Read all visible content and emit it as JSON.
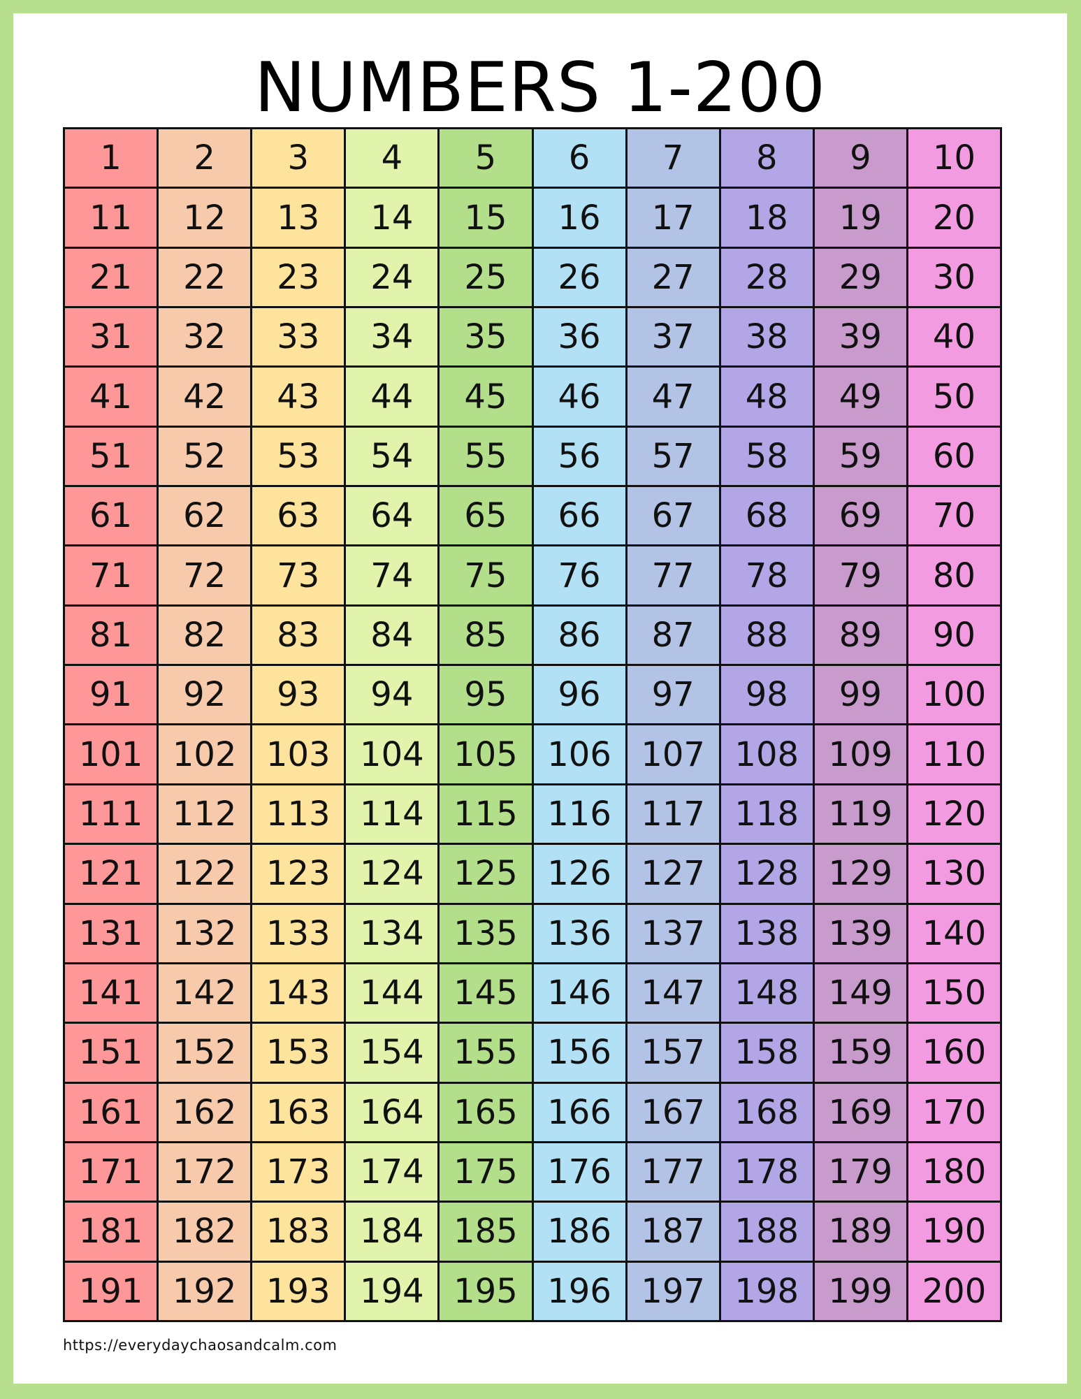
{
  "title": "NUMBERS 1-200",
  "footer_url": "https://everydaychaosandcalm.com",
  "colors": {
    "border": "#b8df8d",
    "columns": [
      "#fe9797",
      "#f6caab",
      "#fde39c",
      "#e2f3ab",
      "#b3de8a",
      "#b2e0f5",
      "#b2c3e6",
      "#b3a6e6",
      "#c99bcc",
      "#f29be1"
    ]
  },
  "numbers": [
    1,
    2,
    3,
    4,
    5,
    6,
    7,
    8,
    9,
    10,
    11,
    12,
    13,
    14,
    15,
    16,
    17,
    18,
    19,
    20,
    21,
    22,
    23,
    24,
    25,
    26,
    27,
    28,
    29,
    30,
    31,
    32,
    33,
    34,
    35,
    36,
    37,
    38,
    39,
    40,
    41,
    42,
    43,
    44,
    45,
    46,
    47,
    48,
    49,
    50,
    51,
    52,
    53,
    54,
    55,
    56,
    57,
    58,
    59,
    60,
    61,
    62,
    63,
    64,
    65,
    66,
    67,
    68,
    69,
    70,
    71,
    72,
    73,
    74,
    75,
    76,
    77,
    78,
    79,
    80,
    81,
    82,
    83,
    84,
    85,
    86,
    87,
    88,
    89,
    90,
    91,
    92,
    93,
    94,
    95,
    96,
    97,
    98,
    99,
    100,
    101,
    102,
    103,
    104,
    105,
    106,
    107,
    108,
    109,
    110,
    111,
    112,
    113,
    114,
    115,
    116,
    117,
    118,
    119,
    120,
    121,
    122,
    123,
    124,
    125,
    126,
    127,
    128,
    129,
    130,
    131,
    132,
    133,
    134,
    135,
    136,
    137,
    138,
    139,
    140,
    141,
    142,
    143,
    144,
    145,
    146,
    147,
    148,
    149,
    150,
    151,
    152,
    153,
    154,
    155,
    156,
    157,
    158,
    159,
    160,
    161,
    162,
    163,
    164,
    165,
    166,
    167,
    168,
    169,
    170,
    171,
    172,
    173,
    174,
    175,
    176,
    177,
    178,
    179,
    180,
    181,
    182,
    183,
    184,
    185,
    186,
    187,
    188,
    189,
    190,
    191,
    192,
    193,
    194,
    195,
    196,
    197,
    198,
    199,
    200
  ]
}
